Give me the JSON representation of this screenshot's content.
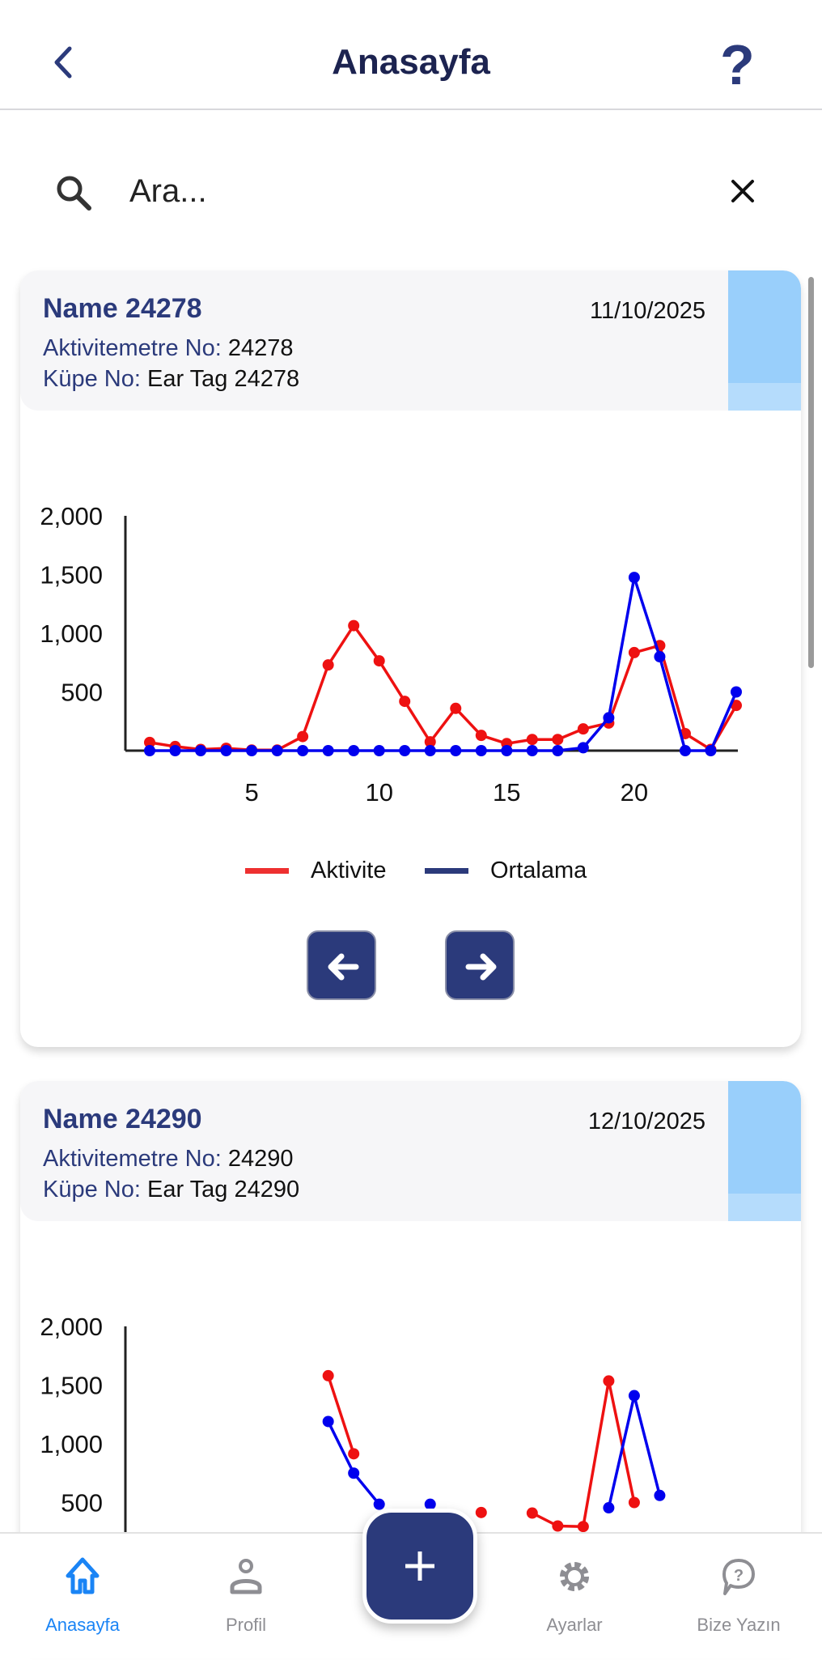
{
  "header": {
    "title": "Anasayfa",
    "back_icon": "chevron-left-icon",
    "help_icon": "question-mark-icon",
    "help_label": "?"
  },
  "search": {
    "placeholder": "Ara...",
    "value": ""
  },
  "colors": {
    "primary": "#2b3a7b",
    "aktivite": "#ee1111",
    "ortalama": "#0000ee",
    "active_tab": "#1a84f5"
  },
  "cards": [
    {
      "name": "Name 24278",
      "date": "11/10/2025",
      "activity_label": "Aktivitemetre No:",
      "activity_value": "24278",
      "tag_label": "Küpe No:",
      "tag_value": "Ear Tag 24278"
    },
    {
      "name": "Name 24290",
      "date": "12/10/2025",
      "activity_label": "Aktivitemetre No:",
      "activity_value": "24290",
      "tag_label": "Küpe No:",
      "tag_value": "Ear Tag 24290"
    }
  ],
  "legend": {
    "aktivite": "Aktivite",
    "ortalama": "Ortalama"
  },
  "chart_data": [
    {
      "type": "line",
      "xlim": [
        1,
        24
      ],
      "ylim": [
        0,
        2000
      ],
      "x": [
        1,
        2,
        3,
        4,
        5,
        6,
        7,
        8,
        9,
        10,
        11,
        12,
        13,
        14,
        15,
        16,
        17,
        18,
        19,
        20,
        21,
        22,
        23,
        24
      ],
      "xticks": [
        "5",
        "10",
        "15",
        "20"
      ],
      "xtick_values": [
        5,
        10,
        15,
        20
      ],
      "yticks": [
        "500",
        "1,000",
        "1,500",
        "2,000"
      ],
      "ytick_values": [
        500,
        1000,
        1500,
        2000
      ],
      "legend": "bottom",
      "series": [
        {
          "name": "Aktivite",
          "color": "#ee1111",
          "values": [
            70,
            35,
            10,
            20,
            5,
            5,
            120,
            730,
            1065,
            765,
            420,
            75,
            360,
            130,
            60,
            95,
            95,
            185,
            235,
            835,
            895,
            145,
            10,
            385
          ]
        },
        {
          "name": "Ortalama",
          "color": "#0000ee",
          "values": [
            0,
            0,
            0,
            0,
            0,
            0,
            0,
            0,
            0,
            0,
            0,
            0,
            0,
            0,
            0,
            0,
            0,
            25,
            280,
            1475,
            800,
            0,
            0,
            500
          ]
        }
      ]
    },
    {
      "type": "line",
      "xlim": [
        1,
        24
      ],
      "ylim": [
        0,
        2000
      ],
      "x": [
        1,
        2,
        3,
        4,
        5,
        6,
        7,
        8,
        9,
        10,
        11,
        12,
        13,
        14,
        15,
        16,
        17,
        18,
        19,
        20,
        21,
        22,
        23,
        24
      ],
      "yticks": [
        "500",
        "1,000",
        "1,500",
        "2,000"
      ],
      "ytick_values": [
        500,
        1000,
        1500,
        2000
      ],
      "series": [
        {
          "name": "Aktivite",
          "color": "#ee1111",
          "values": [
            null,
            null,
            null,
            null,
            null,
            null,
            null,
            1580,
            915,
            null,
            null,
            null,
            null,
            415,
            null,
            410,
            300,
            295,
            1535,
            500,
            null,
            null,
            null,
            null
          ]
        },
        {
          "name": "Ortalama",
          "color": "#0000ee",
          "values": [
            null,
            null,
            null,
            null,
            null,
            null,
            null,
            1190,
            750,
            485,
            null,
            485,
            null,
            null,
            null,
            null,
            null,
            null,
            455,
            1410,
            560,
            null,
            null,
            null
          ]
        }
      ]
    }
  ],
  "bottom_nav": {
    "tabs": [
      {
        "label": "Anasayfa",
        "icon": "home-icon"
      },
      {
        "label": "Profil",
        "icon": "user-icon"
      },
      {
        "label": "Ayarlar",
        "icon": "gear-icon"
      },
      {
        "label": "Bize Yazın",
        "icon": "chat-question-icon"
      }
    ],
    "fab_icon": "plus-icon"
  }
}
